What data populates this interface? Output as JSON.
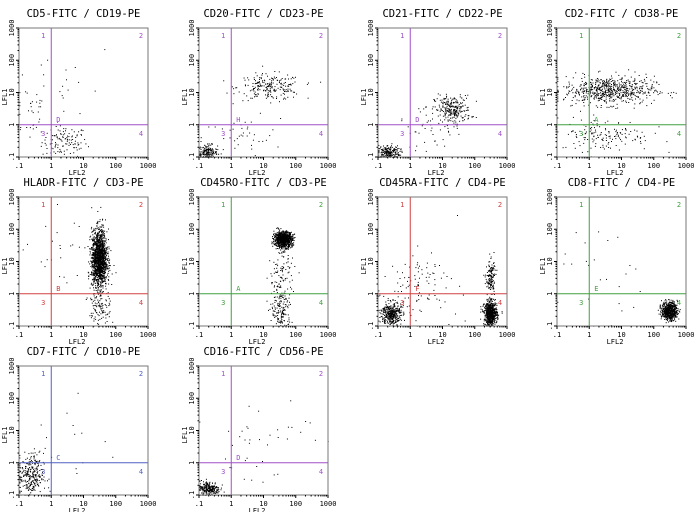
{
  "chart_data": [
    {
      "type": "scatter",
      "title": "CD5-FITC / CD19-PE",
      "xlabel": "LFL2",
      "ylabel": "LFL1",
      "x_scale": "log",
      "y_scale": "log",
      "xlim": [
        0.1,
        1000
      ],
      "ylim": [
        0.1,
        1000
      ],
      "x_tick_labels": [
        ".1",
        "1",
        "10",
        "100",
        "1000"
      ],
      "y_tick_labels": [
        ".1",
        "1",
        "10",
        "100",
        "1000"
      ],
      "quadrant_gate": {
        "x": 1,
        "y": 1,
        "color": "#a050c8",
        "labels": [
          "1",
          "2",
          "3",
          "4"
        ],
        "gate_letter": "D"
      },
      "populations": [
        {
          "x": 2.5,
          "y": 0.3,
          "sx": 0.35,
          "sy": 0.25,
          "n": 120
        },
        {
          "x": 0.2,
          "y": 3,
          "sx": 0.3,
          "sy": 0.5,
          "n": 30
        },
        {
          "x": 3,
          "y": 20,
          "sx": 0.8,
          "sy": 0.7,
          "n": 20
        }
      ]
    },
    {
      "type": "scatter",
      "title": "CD20-FITC / CD23-PE",
      "xlabel": "LFL2",
      "ylabel": "LFL1",
      "x_scale": "log",
      "y_scale": "log",
      "xlim": [
        0.1,
        1000
      ],
      "ylim": [
        0.1,
        1000
      ],
      "x_tick_labels": [
        ".1",
        "1",
        "10",
        "100",
        "1000"
      ],
      "y_tick_labels": [
        ".1",
        "1",
        "10",
        "100",
        "1000"
      ],
      "quadrant_gate": {
        "x": 1,
        "y": 1,
        "color": "#a050c8",
        "labels": [
          "1",
          "2",
          "3",
          "4"
        ],
        "gate_letter": "H"
      },
      "populations": [
        {
          "x": 0.18,
          "y": 0.14,
          "sx": 0.15,
          "sy": 0.12,
          "n": 180
        },
        {
          "x": 15,
          "y": 15,
          "sx": 0.5,
          "sy": 0.2,
          "n": 220
        },
        {
          "x": 2,
          "y": 0.4,
          "sx": 0.6,
          "sy": 0.3,
          "n": 40
        }
      ]
    },
    {
      "type": "scatter",
      "title": "CD21-FITC / CD22-PE",
      "xlabel": "LFL2",
      "ylabel": "LFL1",
      "x_scale": "log",
      "y_scale": "log",
      "xlim": [
        0.1,
        1000
      ],
      "ylim": [
        0.1,
        1000
      ],
      "x_tick_labels": [
        ".1",
        "1",
        "10",
        "100",
        "1000"
      ],
      "y_tick_labels": [
        ".1",
        "1",
        "10",
        "100",
        "1000"
      ],
      "quadrant_gate": {
        "x": 1,
        "y": 1,
        "color": "#a050c8",
        "labels": [
          "1",
          "2",
          "3",
          "4"
        ],
        "gate_letter": "D"
      },
      "populations": [
        {
          "x": 0.2,
          "y": 0.14,
          "sx": 0.18,
          "sy": 0.12,
          "n": 220
        },
        {
          "x": 20,
          "y": 3,
          "sx": 0.28,
          "sy": 0.22,
          "n": 260
        },
        {
          "x": 4,
          "y": 0.7,
          "sx": 0.5,
          "sy": 0.3,
          "n": 40
        }
      ]
    },
    {
      "type": "scatter",
      "title": "CD2-FITC / CD38-PE",
      "xlabel": "LFL2",
      "ylabel": "LFL1",
      "x_scale": "log",
      "y_scale": "log",
      "xlim": [
        0.1,
        1000
      ],
      "ylim": [
        0.1,
        1000
      ],
      "x_tick_labels": [
        ".1",
        "1",
        "10",
        "100",
        "1000"
      ],
      "y_tick_labels": [
        ".1",
        "1",
        "10",
        "100",
        "1000"
      ],
      "quadrant_gate": {
        "x": 1,
        "y": 1,
        "color": "#40a040",
        "labels": [
          "1",
          "2",
          "3",
          "4"
        ],
        "gate_letter": "A"
      },
      "populations": [
        {
          "x": 4,
          "y": 12,
          "sx": 0.7,
          "sy": 0.22,
          "n": 650
        },
        {
          "x": 3,
          "y": 0.5,
          "sx": 0.7,
          "sy": 0.25,
          "n": 150
        }
      ]
    },
    {
      "type": "scatter",
      "title": "HLADR-FITC / CD3-PE",
      "xlabel": "LFL2",
      "ylabel": "LFL1",
      "x_scale": "log",
      "y_scale": "log",
      "xlim": [
        0.1,
        1000
      ],
      "ylim": [
        0.1,
        1000
      ],
      "x_tick_labels": [
        ".1",
        "1",
        "10",
        "100",
        "1000"
      ],
      "y_tick_labels": [
        ".1",
        "1",
        "10",
        "100",
        "1000"
      ],
      "quadrant_gate": {
        "x": 1,
        "y": 1,
        "color": "#d04040",
        "labels": [
          "1",
          "2",
          "3",
          "4"
        ],
        "gate_letter": "B"
      },
      "populations": [
        {
          "x": 30,
          "y": 12,
          "sx": 0.12,
          "sy": 0.45,
          "n": 1500
        },
        {
          "x": 30,
          "y": 0.3,
          "sx": 0.18,
          "sy": 0.3,
          "n": 100
        },
        {
          "x": 3,
          "y": 20,
          "sx": 0.6,
          "sy": 0.6,
          "n": 30
        }
      ]
    },
    {
      "type": "scatter",
      "title": "CD45RO-FITC / CD3-PE",
      "xlabel": "LFL2",
      "ylabel": "LFL1",
      "x_scale": "log",
      "y_scale": "log",
      "xlim": [
        0.1,
        1000
      ],
      "ylim": [
        0.1,
        1000
      ],
      "x_tick_labels": [
        ".1",
        "1",
        "10",
        "100",
        "1000"
      ],
      "y_tick_labels": [
        ".1",
        "1",
        "10",
        "100",
        "1000"
      ],
      "quadrant_gate": {
        "x": 1,
        "y": 1,
        "color": "#40a040",
        "labels": [
          "1",
          "2",
          "3",
          "4"
        ],
        "gate_letter": "A"
      },
      "populations": [
        {
          "x": 40,
          "y": 50,
          "sx": 0.14,
          "sy": 0.12,
          "n": 900
        },
        {
          "x": 35,
          "y": 0.3,
          "sx": 0.15,
          "sy": 0.35,
          "n": 160
        },
        {
          "x": 35,
          "y": 5,
          "sx": 0.2,
          "sy": 0.45,
          "n": 100
        }
      ]
    },
    {
      "type": "scatter",
      "title": "CD45RA-FITC / CD4-PE",
      "xlabel": "LFL2",
      "ylabel": "LFL1",
      "x_scale": "log",
      "y_scale": "log",
      "xlim": [
        0.1,
        1000
      ],
      "ylim": [
        0.1,
        1000
      ],
      "x_tick_labels": [
        ".1",
        "1",
        "10",
        "100",
        "1000"
      ],
      "y_tick_labels": [
        ".1",
        "1",
        "10",
        "100",
        "1000"
      ],
      "quadrant_gate": {
        "x": 1,
        "y": 1,
        "color": "#d04040",
        "labels": [
          "1",
          "2",
          "3",
          "4"
        ],
        "gate_letter": "F"
      },
      "populations": [
        {
          "x": 300,
          "y": 0.25,
          "sx": 0.1,
          "sy": 0.18,
          "n": 650
        },
        {
          "x": 0.25,
          "y": 0.25,
          "sx": 0.15,
          "sy": 0.18,
          "n": 380
        },
        {
          "x": 300,
          "y": 3,
          "sx": 0.07,
          "sy": 0.3,
          "n": 150
        },
        {
          "x": 2,
          "y": 2,
          "sx": 0.6,
          "sy": 0.5,
          "n": 100
        }
      ]
    },
    {
      "type": "scatter",
      "title": "CD8-FITC / CD4-PE",
      "xlabel": "LFL2",
      "ylabel": "LFL1",
      "x_scale": "log",
      "y_scale": "log",
      "xlim": [
        0.1,
        1000
      ],
      "ylim": [
        0.1,
        1000
      ],
      "x_tick_labels": [
        ".1",
        "1",
        "10",
        "100",
        "1000"
      ],
      "y_tick_labels": [
        ".1",
        "1",
        "10",
        "100",
        "1000"
      ],
      "quadrant_gate": {
        "x": 1,
        "y": 1,
        "color": "#40a040",
        "labels": [
          "1",
          "2",
          "3",
          "4"
        ],
        "gate_letter": "E"
      },
      "populations": [
        {
          "x": 300,
          "y": 0.3,
          "sx": 0.12,
          "sy": 0.14,
          "n": 600
        },
        {
          "x": 3,
          "y": 3,
          "sx": 0.8,
          "sy": 0.8,
          "n": 25
        }
      ]
    },
    {
      "type": "scatter",
      "title": "CD7-FITC / CD10-PE",
      "xlabel": "LFL2",
      "ylabel": "LFL1",
      "x_scale": "log",
      "y_scale": "log",
      "xlim": [
        0.1,
        1000
      ],
      "ylim": [
        0.1,
        1000
      ],
      "x_tick_labels": [
        ".1",
        "1",
        "10",
        "100",
        "1000"
      ],
      "y_tick_labels": [
        ".1",
        "1",
        "10",
        "100",
        "1000"
      ],
      "quadrant_gate": {
        "x": 1,
        "y": 1,
        "color": "#5060c0",
        "labels": [
          "1",
          "2",
          "3",
          "4"
        ],
        "gate_letter": "C"
      },
      "populations": [
        {
          "x": 0.22,
          "y": 0.4,
          "sx": 0.2,
          "sy": 0.35,
          "n": 280
        },
        {
          "x": 3,
          "y": 3,
          "sx": 0.8,
          "sy": 0.8,
          "n": 15
        }
      ]
    },
    {
      "type": "scatter",
      "title": "CD16-FITC / CD56-PE",
      "xlabel": "LFL2",
      "ylabel": "LFL1",
      "x_scale": "log",
      "y_scale": "log",
      "xlim": [
        0.1,
        1000
      ],
      "ylim": [
        0.1,
        1000
      ],
      "x_tick_labels": [
        ".1",
        "1",
        "10",
        "100",
        "1000"
      ],
      "y_tick_labels": [
        ".1",
        "1",
        "10",
        "100",
        "1000"
      ],
      "quadrant_gate": {
        "x": 1,
        "y": 1,
        "color": "#a050c8",
        "labels": [
          "1",
          "2",
          "3",
          "4"
        ],
        "gate_letter": "D"
      },
      "populations": [
        {
          "x": 0.2,
          "y": 0.16,
          "sx": 0.17,
          "sy": 0.12,
          "n": 240
        },
        {
          "x": 5,
          "y": 5,
          "sx": 0.9,
          "sy": 0.8,
          "n": 40
        }
      ]
    }
  ]
}
